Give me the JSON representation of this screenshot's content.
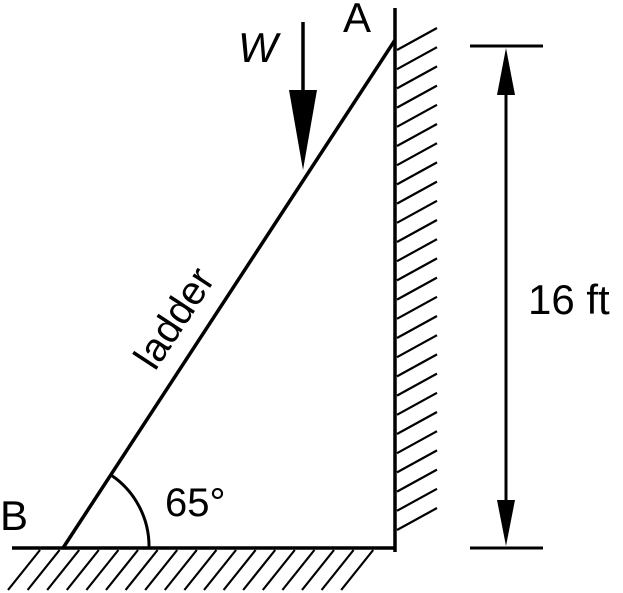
{
  "labels": {
    "point_a": "A",
    "point_b": "B",
    "weight": "W",
    "ladder": "ladder",
    "angle": "65°",
    "height": "16 ft"
  },
  "colors": {
    "ink": "#000000",
    "background": "#ffffff"
  }
}
